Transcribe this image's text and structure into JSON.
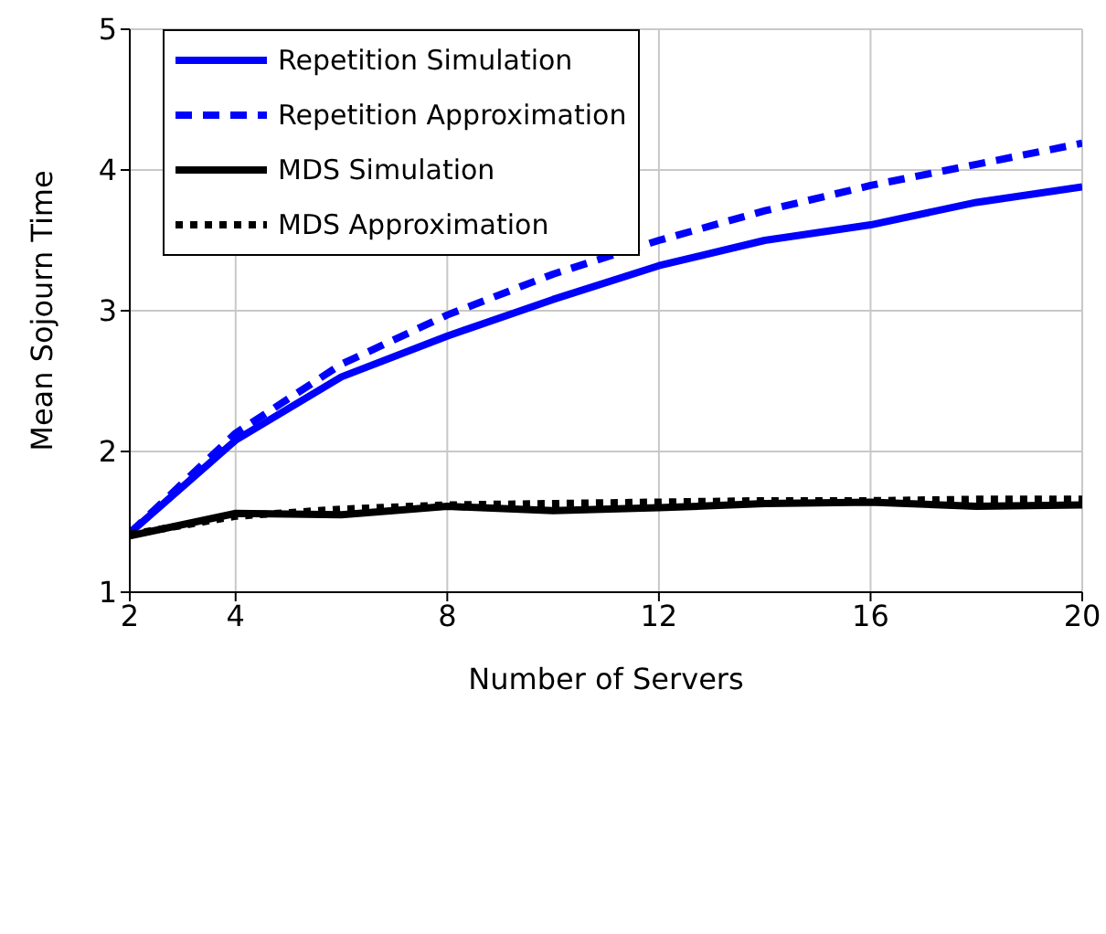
{
  "chart_data": {
    "type": "line",
    "xlabel": "Number of Servers",
    "ylabel": "Mean Sojourn Time",
    "x": [
      2,
      4,
      6,
      8,
      10,
      12,
      14,
      16,
      18,
      20
    ],
    "series": [
      {
        "name": "Repetition Simulation",
        "color": "#0000ff",
        "line_style": "solid",
        "values": [
          1.42,
          2.08,
          2.53,
          2.82,
          3.08,
          3.32,
          3.5,
          3.61,
          3.77,
          3.88
        ]
      },
      {
        "name": "Repetition Approximation",
        "color": "#0000ff",
        "line_style": "dashed",
        "values": [
          1.42,
          2.13,
          2.62,
          2.97,
          3.26,
          3.5,
          3.71,
          3.89,
          4.04,
          4.19
        ]
      },
      {
        "name": "MDS Simulation",
        "color": "#000000",
        "line_style": "solid",
        "values": [
          1.4,
          1.56,
          1.55,
          1.61,
          1.58,
          1.6,
          1.63,
          1.64,
          1.61,
          1.62
        ]
      },
      {
        "name": "MDS Approximation",
        "color": "#000000",
        "line_style": "dotted",
        "values": [
          1.41,
          1.54,
          1.59,
          1.62,
          1.63,
          1.64,
          1.65,
          1.65,
          1.66,
          1.66
        ]
      }
    ],
    "xlim": [
      2,
      20
    ],
    "xticks": [
      2,
      4,
      8,
      12,
      16,
      20
    ],
    "ylim": [
      1,
      5
    ],
    "yticks": [
      1,
      2,
      3,
      4,
      5
    ],
    "grid": true,
    "legend": "top left",
    "marker": "none"
  }
}
